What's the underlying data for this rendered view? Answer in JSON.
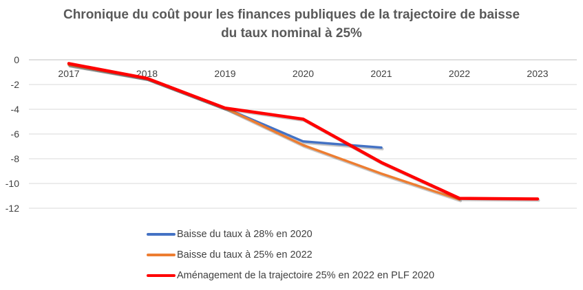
{
  "chart_data": {
    "type": "line",
    "title_line1": "Chronique du coût pour les finances publiques de la trajectoire de baisse",
    "title_line2": "du taux nominal à 25%",
    "categories": [
      "2017",
      "2018",
      "2019",
      "2020",
      "2021",
      "2022",
      "2023"
    ],
    "y_ticks": [
      "0",
      "-2",
      "-4",
      "-6",
      "-8",
      "-10",
      "-12"
    ],
    "ylim": [
      -12,
      0
    ],
    "grid": true,
    "legend_position": "bottom-left",
    "series": [
      {
        "name": "Baisse du taux à 28% en 2020",
        "color": "#4472C4",
        "values": [
          -0.4,
          -1.5,
          -3.9,
          -6.6,
          -7.1,
          null,
          null
        ]
      },
      {
        "name": "Baisse du taux à 25% en 2022",
        "color": "#ED7D31",
        "values": [
          -0.4,
          -1.5,
          -3.9,
          -6.9,
          -9.2,
          -11.3,
          null
        ]
      },
      {
        "name": "Aménagement de la trajectoire 25% en 2022 en PLF 2020",
        "color": "#FF0000",
        "values": [
          -0.3,
          -1.5,
          -3.9,
          -4.8,
          -8.3,
          -11.2,
          -11.25
        ]
      }
    ]
  }
}
